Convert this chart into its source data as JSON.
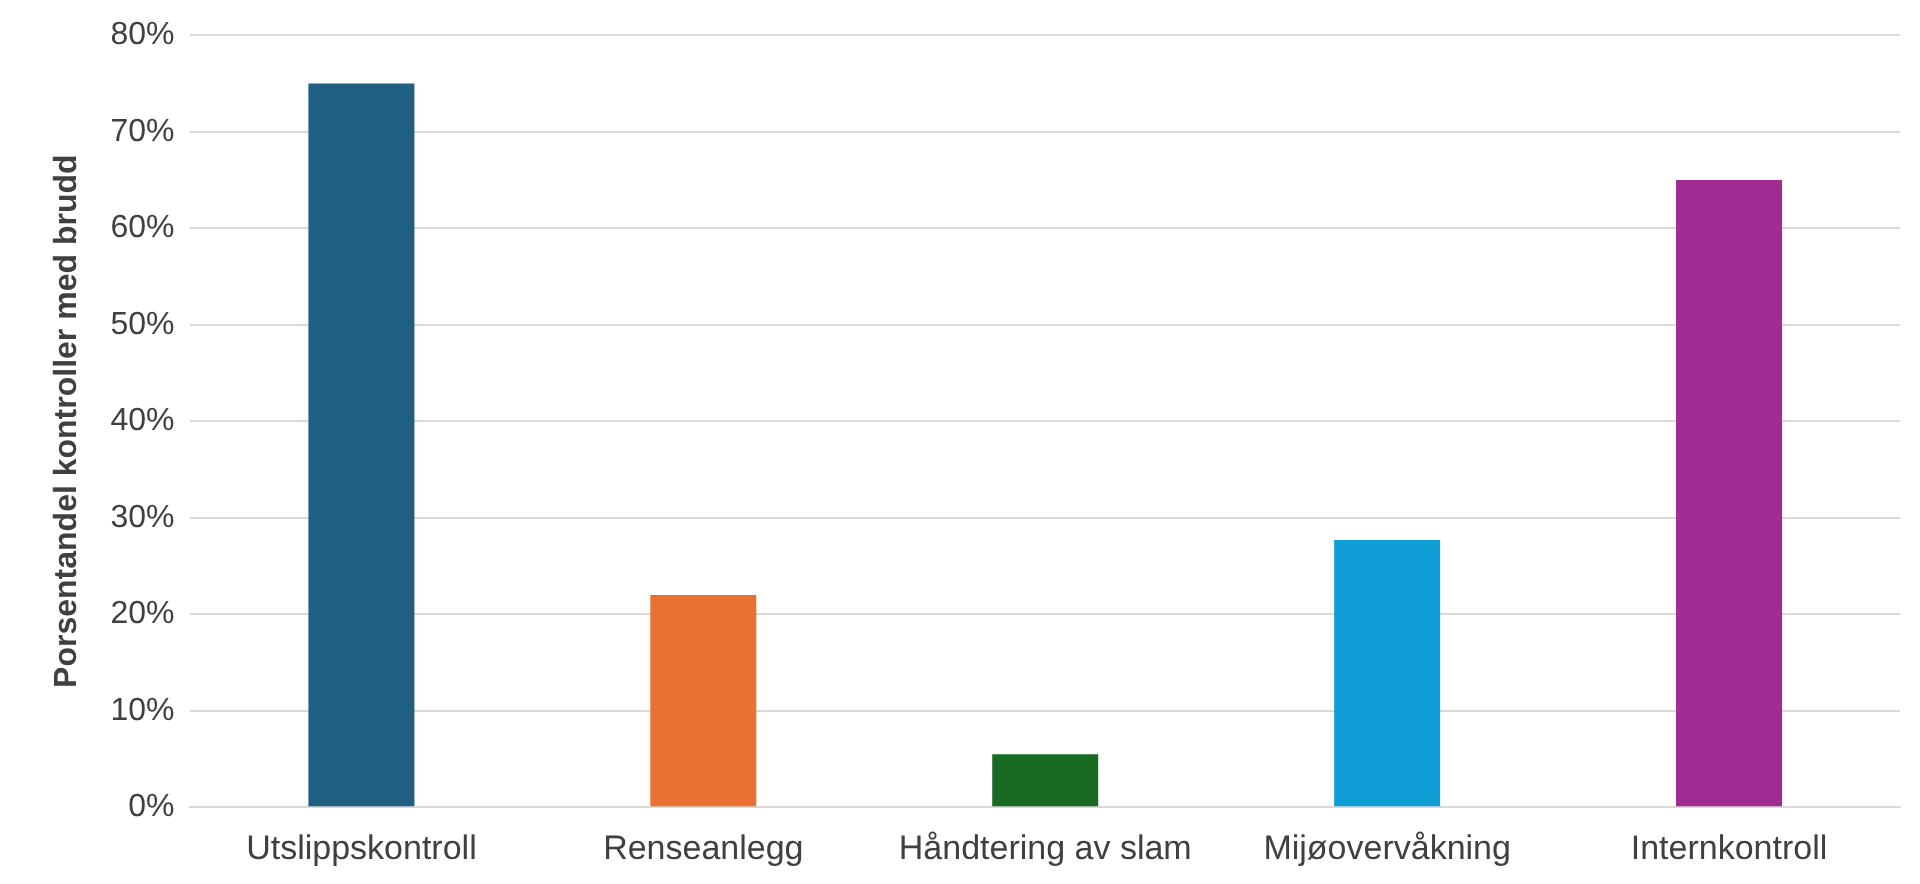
{
  "chart_data": {
    "type": "bar",
    "ylabel": "Porsentandel kontroller med brudd",
    "categories": [
      "Utslippskontroll",
      "Renseanlegg",
      "Håndtering av slam",
      "Mijøovervåkning",
      "Internkontroll"
    ],
    "values": [
      75,
      22,
      5.5,
      27.7,
      65
    ],
    "colors": [
      "#1f5f82",
      "#e97132",
      "#196b24",
      "#0f9ed5",
      "#a02b93"
    ],
    "ylim": [
      0,
      80
    ],
    "yticks": [
      {
        "value": 0,
        "label": "0%"
      },
      {
        "value": 10,
        "label": "10%"
      },
      {
        "value": 20,
        "label": "20%"
      },
      {
        "value": 30,
        "label": "30%"
      },
      {
        "value": 40,
        "label": "40%"
      },
      {
        "value": 50,
        "label": "50%"
      },
      {
        "value": 60,
        "label": "60%"
      },
      {
        "value": 70,
        "label": "70%"
      },
      {
        "value": 80,
        "label": "80%"
      }
    ],
    "grid": "y",
    "legend": false
  }
}
